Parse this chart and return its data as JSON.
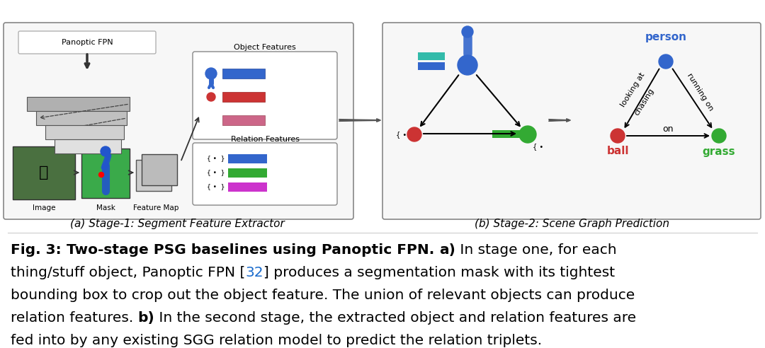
{
  "sublabel_a": "(a) Stage-1: Segment Feature Extractor",
  "sublabel_b": "(b) Stage-2: Scene Graph Prediction",
  "bg_color": "#ffffff",
  "caption_fs": 14.5,
  "sublabel_fs": 11,
  "caption_lines": [
    [
      {
        "text": "Fig. 3: ",
        "bold": true,
        "color": "#000000"
      },
      {
        "text": "Two-stage PSG baselines using Panoptic FPN. ",
        "bold": true,
        "color": "#000000"
      },
      {
        "text": "a)",
        "bold": true,
        "color": "#000000"
      },
      {
        "text": " In stage one, for each",
        "bold": false,
        "color": "#000000"
      }
    ],
    [
      {
        "text": "thing/stuff object, Panoptic FPN [",
        "bold": false,
        "color": "#000000"
      },
      {
        "text": "32",
        "bold": false,
        "color": "#1a6bcc"
      },
      {
        "text": "] produces a segmentation mask with its tightest",
        "bold": false,
        "color": "#000000"
      }
    ],
    [
      {
        "text": "bounding box to crop out the object feature. The union of relevant objects can produce",
        "bold": false,
        "color": "#000000"
      }
    ],
    [
      {
        "text": "relation features. ",
        "bold": false,
        "color": "#000000"
      },
      {
        "text": "b)",
        "bold": true,
        "color": "#000000"
      },
      {
        "text": " In the second stage, the extracted object and relation features are",
        "bold": false,
        "color": "#000000"
      }
    ],
    [
      {
        "text": "fed into by any existing SGG relation model to predict the relation triplets.",
        "bold": false,
        "color": "#000000"
      }
    ]
  ]
}
